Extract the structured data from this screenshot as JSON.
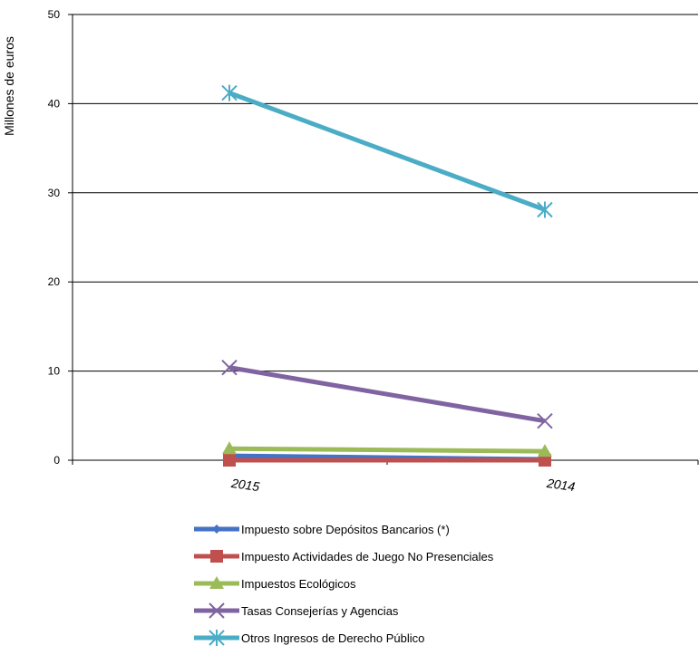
{
  "chart_data": {
    "type": "line",
    "title": "",
    "xlabel": "",
    "ylabel": "Millones de euros",
    "ylim": [
      0,
      50
    ],
    "yticks": [
      0,
      10,
      20,
      30,
      40,
      50
    ],
    "categories": [
      "2015",
      "2014"
    ],
    "grid": "horizontal",
    "legend_position": "bottom",
    "series": [
      {
        "name": "Impuesto sobre Depósitos Bancarios (*)",
        "values": [
          0.5,
          0.1
        ],
        "color": "#4472C4",
        "marker": "diamond"
      },
      {
        "name": "Impuesto Actividades de Juego No Presenciales",
        "values": [
          0.0,
          0.0
        ],
        "color": "#C0504D",
        "marker": "square"
      },
      {
        "name": "Impuestos Ecológicos",
        "values": [
          1.3,
          1.0
        ],
        "color": "#9BBB59",
        "marker": "triangle"
      },
      {
        "name": "Tasas Consejerías y Agencias",
        "values": [
          10.4,
          4.4
        ],
        "color": "#8064A2",
        "marker": "x"
      },
      {
        "name": "Otros Ingresos de Derecho Público",
        "values": [
          41.2,
          28.1
        ],
        "color": "#4BACC6",
        "marker": "star"
      }
    ]
  }
}
